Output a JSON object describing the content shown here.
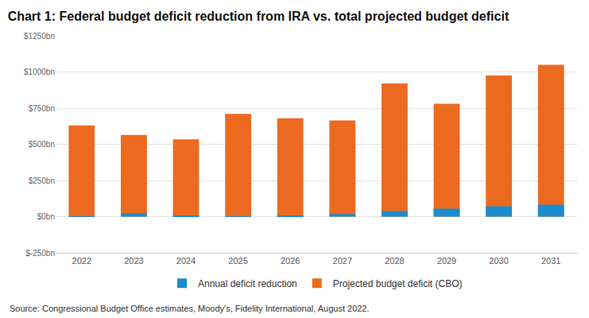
{
  "chart_data": {
    "type": "bar",
    "title": "Chart 1: Federal budget deficit reduction from IRA vs. total projected budget deficit",
    "categories": [
      "2022",
      "2023",
      "2024",
      "2025",
      "2026",
      "2027",
      "2028",
      "2029",
      "2030",
      "2031"
    ],
    "series": [
      {
        "name": "Annual deficit reduction",
        "color": "#1a8dd0",
        "values": [
          2,
          25,
          5,
          2,
          3,
          18,
          38,
          55,
          72,
          82
        ]
      },
      {
        "name": "Projected budget deficit (CBO)",
        "color": "#ec6a1f",
        "values": [
          630,
          565,
          535,
          710,
          680,
          665,
          920,
          780,
          975,
          1050
        ]
      }
    ],
    "ylim": [
      -250,
      1250
    ],
    "yticks": [
      {
        "value": -250,
        "label": "$-250bn"
      },
      {
        "value": 0,
        "label": "$0bn"
      },
      {
        "value": 250,
        "label": "$250bn"
      },
      {
        "value": 500,
        "label": "$500bn"
      },
      {
        "value": 750,
        "label": "$750bn"
      },
      {
        "value": 1000,
        "label": "$1000bn"
      },
      {
        "value": 1250,
        "label": "$1250bn"
      }
    ],
    "grid": true,
    "legend": "bottom",
    "annotations": [
      "Source: Congressional Budget Office estimates, Moody's, Fidelity International, August 2022."
    ]
  }
}
